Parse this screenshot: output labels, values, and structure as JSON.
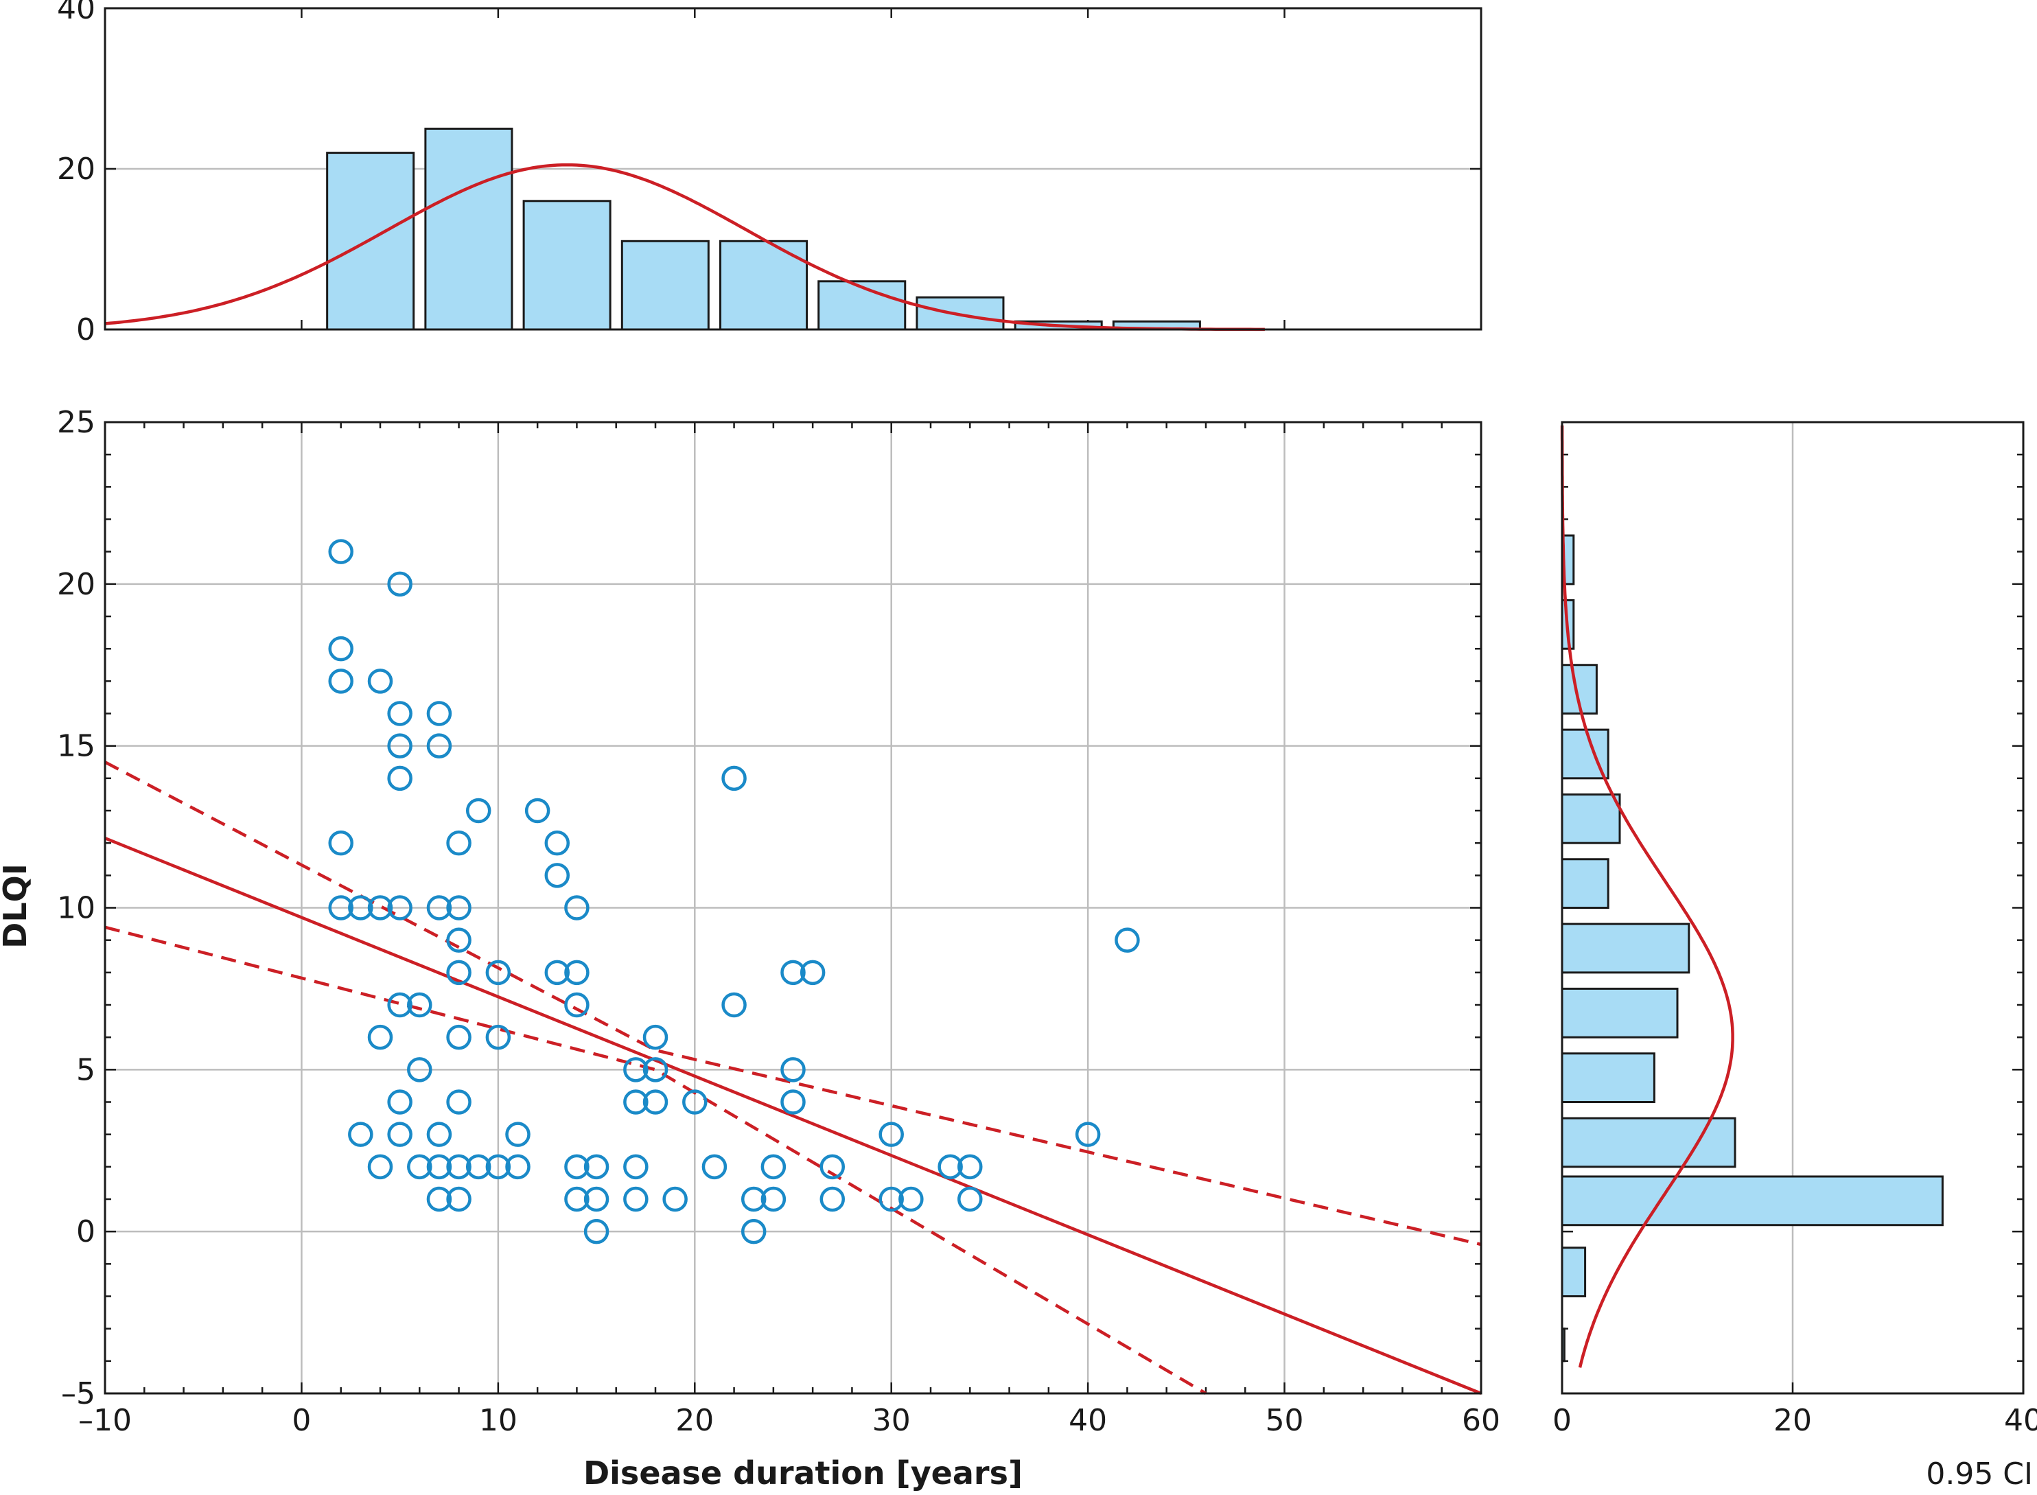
{
  "chart_data": [
    {
      "id": "top-histogram",
      "type": "bar",
      "bin_edges": [
        1,
        6,
        11,
        16,
        21,
        26,
        31,
        36,
        41,
        46
      ],
      "values": [
        22,
        25,
        16,
        11,
        11,
        6,
        4,
        1,
        1
      ],
      "xlim": [
        -10,
        60
      ],
      "ylim": [
        0,
        40
      ],
      "yticks": [
        0,
        20,
        40
      ],
      "yticklabels": [
        "0",
        "20",
        "40"
      ],
      "curve": {
        "type": "normal",
        "mean": 13.5,
        "sd": 9.1,
        "peak": 20.5,
        "x_range": [
          -10,
          49
        ]
      },
      "colors": {
        "bar_fill": "#a8dcf5",
        "bar_stroke": "#1a1a1a",
        "curve": "#cc1f25"
      }
    },
    {
      "id": "main-scatter",
      "type": "scatter",
      "xlabel": "Disease duration [years]",
      "ylabel": "DLQI",
      "xlim": [
        -10,
        60
      ],
      "ylim": [
        -5,
        25
      ],
      "xticks": [
        -10,
        0,
        10,
        20,
        30,
        40,
        50,
        60
      ],
      "xticklabels": [
        "–10",
        "0",
        "10",
        "20",
        "30",
        "40",
        "50",
        "60"
      ],
      "yticks": [
        -5,
        0,
        5,
        10,
        15,
        20,
        25
      ],
      "yticklabels": [
        "–5",
        "0",
        "5",
        "10",
        "15",
        "20",
        "25"
      ],
      "grid": true,
      "points": [
        [
          2,
          21
        ],
        [
          5,
          20
        ],
        [
          2,
          18
        ],
        [
          2,
          17
        ],
        [
          4,
          17
        ],
        [
          5,
          16
        ],
        [
          7,
          16
        ],
        [
          5,
          15
        ],
        [
          7,
          15
        ],
        [
          5,
          14
        ],
        [
          22,
          14
        ],
        [
          9,
          13
        ],
        [
          12,
          13
        ],
        [
          2,
          12
        ],
        [
          8,
          12
        ],
        [
          13,
          12
        ],
        [
          13,
          11
        ],
        [
          2,
          10
        ],
        [
          3,
          10
        ],
        [
          4,
          10
        ],
        [
          5,
          10
        ],
        [
          7,
          10
        ],
        [
          8,
          10
        ],
        [
          14,
          10
        ],
        [
          42,
          9
        ],
        [
          8,
          9
        ],
        [
          8,
          8
        ],
        [
          10,
          8
        ],
        [
          13,
          8
        ],
        [
          14,
          8
        ],
        [
          25,
          8
        ],
        [
          26,
          8
        ],
        [
          5,
          7
        ],
        [
          6,
          7
        ],
        [
          14,
          7
        ],
        [
          22,
          7
        ],
        [
          4,
          6
        ],
        [
          8,
          6
        ],
        [
          10,
          6
        ],
        [
          18,
          6
        ],
        [
          6,
          5
        ],
        [
          17,
          5
        ],
        [
          18,
          5
        ],
        [
          25,
          5
        ],
        [
          5,
          4
        ],
        [
          8,
          4
        ],
        [
          17,
          4
        ],
        [
          18,
          4
        ],
        [
          20,
          4
        ],
        [
          25,
          4
        ],
        [
          3,
          3
        ],
        [
          5,
          3
        ],
        [
          7,
          3
        ],
        [
          11,
          3
        ],
        [
          30,
          3
        ],
        [
          40,
          3
        ],
        [
          4,
          2
        ],
        [
          6,
          2
        ],
        [
          7,
          2
        ],
        [
          8,
          2
        ],
        [
          9,
          2
        ],
        [
          10,
          2
        ],
        [
          11,
          2
        ],
        [
          14,
          2
        ],
        [
          15,
          2
        ],
        [
          17,
          2
        ],
        [
          21,
          2
        ],
        [
          24,
          2
        ],
        [
          27,
          2
        ],
        [
          33,
          2
        ],
        [
          34,
          2
        ],
        [
          7,
          1
        ],
        [
          8,
          1
        ],
        [
          14,
          1
        ],
        [
          15,
          1
        ],
        [
          17,
          1
        ],
        [
          19,
          1
        ],
        [
          23,
          1
        ],
        [
          24,
          1
        ],
        [
          27,
          1
        ],
        [
          30,
          1
        ],
        [
          31,
          1
        ],
        [
          34,
          1
        ],
        [
          15,
          0
        ],
        [
          23,
          0
        ]
      ],
      "regression": {
        "intercept": 9.7,
        "slope": -0.245
      },
      "ci_lines": {
        "upper": [
          [
            -10,
            14.5
          ],
          [
            18,
            5.6
          ],
          [
            60,
            -0.4
          ]
        ],
        "lower": [
          [
            -10,
            9.4
          ],
          [
            18,
            5.0
          ],
          [
            46,
            -5
          ]
        ]
      },
      "colors": {
        "points": "#1a8ac8",
        "line": "#cc1f25",
        "grid": "#bdbdbd"
      }
    },
    {
      "id": "right-histogram",
      "type": "bar",
      "orientation": "horizontal",
      "bins": [
        [
          20,
          21.5,
          1
        ],
        [
          18,
          19.5,
          1
        ],
        [
          16,
          17.5,
          3
        ],
        [
          14,
          15.5,
          4
        ],
        [
          12,
          13.5,
          5
        ],
        [
          10,
          11.5,
          4
        ],
        [
          8,
          9.5,
          11
        ],
        [
          6,
          7.5,
          10
        ],
        [
          4,
          5.5,
          8
        ],
        [
          2,
          3.5,
          15
        ],
        [
          0.2,
          1.7,
          33
        ],
        [
          -2,
          -0.5,
          2
        ],
        [
          -4,
          -3,
          0.2
        ]
      ],
      "xlim": [
        0,
        40
      ],
      "xticks": [
        0,
        20,
        40
      ],
      "xticklabels": [
        "0",
        "20",
        "40"
      ],
      "xlabel": "0.95 CI",
      "curve": {
        "type": "normal",
        "mean": 6,
        "sd": 4.8,
        "peak": 14.8,
        "y_range": [
          -4.2,
          25
        ]
      },
      "colors": {
        "bar_fill": "#a8dcf5",
        "bar_stroke": "#1a1a1a",
        "curve": "#cc1f25"
      }
    }
  ]
}
